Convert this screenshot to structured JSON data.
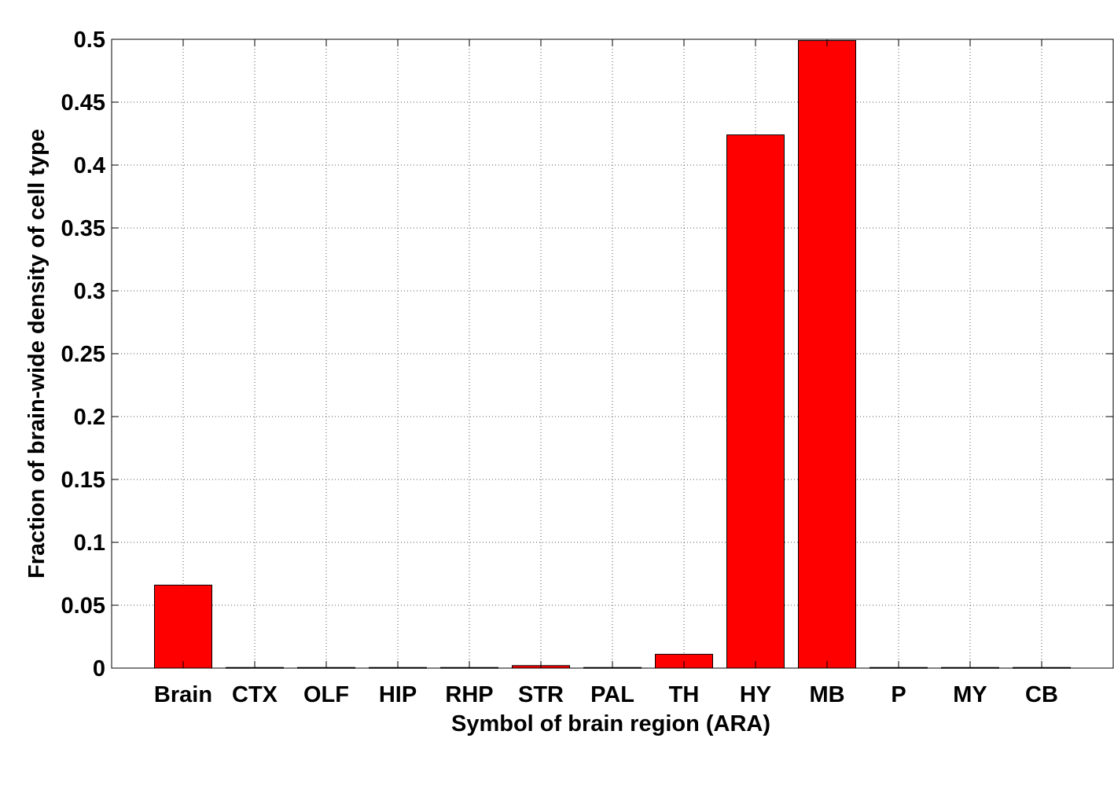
{
  "chart_data": {
    "type": "bar",
    "title": "",
    "xlabel": "Symbol of brain region (ARA)",
    "ylabel": "Fraction of brain-wide density of cell type",
    "categories": [
      "Brain",
      "CTX",
      "OLF",
      "HIP",
      "RHP",
      "STR",
      "PAL",
      "TH",
      "HY",
      "MB",
      "P",
      "MY",
      "CB"
    ],
    "values": [
      0.066,
      0.0005,
      0.0005,
      0.0005,
      0.0005,
      0.002,
      0.0005,
      0.011,
      0.424,
      0.499,
      0.0005,
      0.0005,
      0.0005
    ],
    "ylim": [
      0,
      0.5
    ],
    "yticks": [
      0,
      0.05,
      0.1,
      0.15,
      0.2,
      0.25,
      0.3,
      0.35,
      0.4,
      0.45,
      0.5
    ],
    "ytick_labels": [
      "0",
      "0.05",
      "0.1",
      "0.15",
      "0.2",
      "0.25",
      "0.3",
      "0.35",
      "0.4",
      "0.45",
      "0.5"
    ],
    "grid": true,
    "bar_color": "#ff0000",
    "bar_edge_color": "#000000"
  }
}
